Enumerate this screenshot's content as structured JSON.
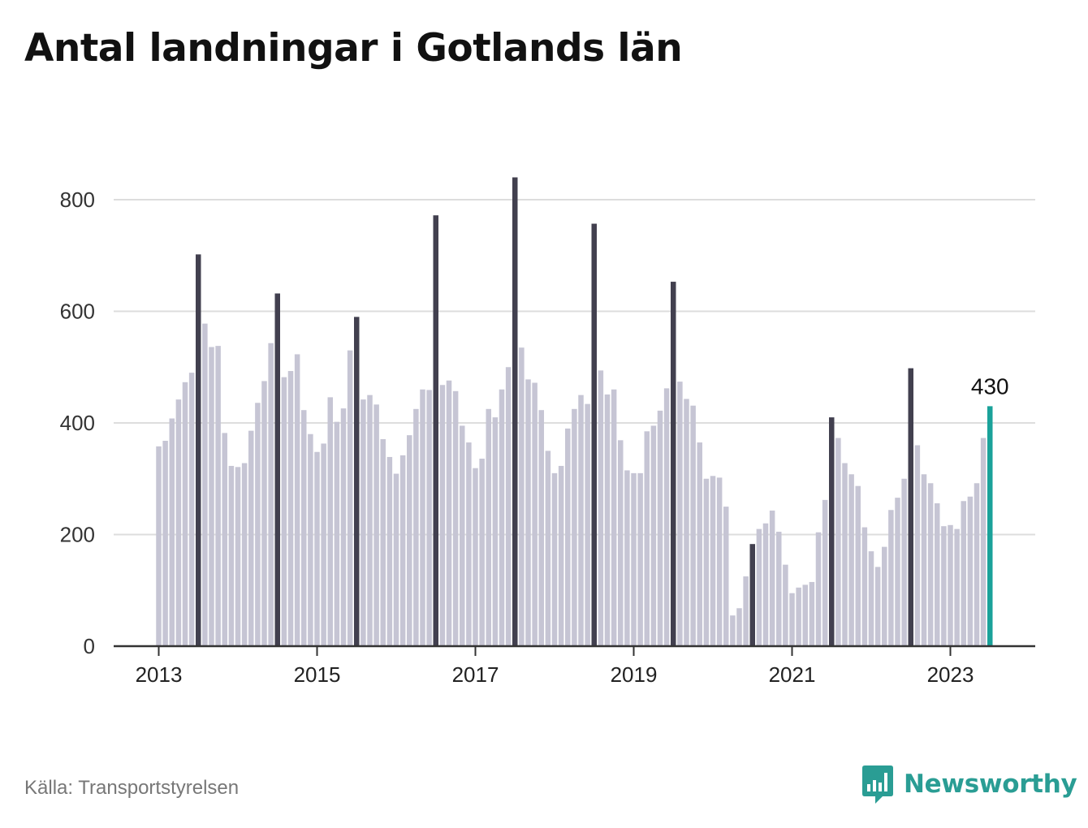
{
  "title": "Antal landningar i Gotlands län",
  "source": "Källa: Transportstyrelsen",
  "brand": {
    "name": "Newsworthy",
    "icon": "newsworthy-logo-icon",
    "color": "#2a9d94"
  },
  "colors": {
    "bar": "#c6c5d4",
    "highlight": "#42404f",
    "latest": "#1aa29a",
    "grid": "#dddddd",
    "axis": "#333333"
  },
  "chart_data": {
    "type": "bar",
    "title": "Antal landningar i Gotlands län",
    "xlabel": "",
    "ylabel": "",
    "ylim": [
      0,
      880
    ],
    "yticks": [
      "0",
      "200",
      "400",
      "600",
      "800"
    ],
    "xticks": [
      "2013",
      "2015",
      "2017",
      "2019",
      "2021",
      "2023"
    ],
    "grid": true,
    "start": "2013-01",
    "x": [
      "2013-01",
      "2013-02",
      "2013-03",
      "2013-04",
      "2013-05",
      "2013-06",
      "2013-07",
      "2013-08",
      "2013-09",
      "2013-10",
      "2013-11",
      "2013-12",
      "2014-01",
      "2014-02",
      "2014-03",
      "2014-04",
      "2014-05",
      "2014-06",
      "2014-07",
      "2014-08",
      "2014-09",
      "2014-10",
      "2014-11",
      "2014-12",
      "2015-01",
      "2015-02",
      "2015-03",
      "2015-04",
      "2015-05",
      "2015-06",
      "2015-07",
      "2015-08",
      "2015-09",
      "2015-10",
      "2015-11",
      "2015-12",
      "2016-01",
      "2016-02",
      "2016-03",
      "2016-04",
      "2016-05",
      "2016-06",
      "2016-07",
      "2016-08",
      "2016-09",
      "2016-10",
      "2016-11",
      "2016-12",
      "2017-01",
      "2017-02",
      "2017-03",
      "2017-04",
      "2017-05",
      "2017-06",
      "2017-07",
      "2017-08",
      "2017-09",
      "2017-10",
      "2017-11",
      "2017-12",
      "2018-01",
      "2018-02",
      "2018-03",
      "2018-04",
      "2018-05",
      "2018-06",
      "2018-07",
      "2018-08",
      "2018-09",
      "2018-10",
      "2018-11",
      "2018-12",
      "2019-01",
      "2019-02",
      "2019-03",
      "2019-04",
      "2019-05",
      "2019-06",
      "2019-07",
      "2019-08",
      "2019-09",
      "2019-10",
      "2019-11",
      "2019-12",
      "2020-01",
      "2020-02",
      "2020-03",
      "2020-04",
      "2020-05",
      "2020-06",
      "2020-07",
      "2020-08",
      "2020-09",
      "2020-10",
      "2020-11",
      "2020-12",
      "2021-01",
      "2021-02",
      "2021-03",
      "2021-04",
      "2021-05",
      "2021-06",
      "2021-07",
      "2021-08",
      "2021-09",
      "2021-10",
      "2021-11",
      "2021-12",
      "2022-01",
      "2022-02",
      "2022-03",
      "2022-04",
      "2022-05",
      "2022-06",
      "2022-07",
      "2022-08",
      "2022-09",
      "2022-10",
      "2022-11",
      "2022-12",
      "2023-01",
      "2023-02",
      "2023-03",
      "2023-04",
      "2023-05",
      "2023-06",
      "2023-07"
    ],
    "values": [
      358,
      368,
      408,
      442,
      473,
      490,
      702,
      578,
      536,
      538,
      382,
      323,
      321,
      328,
      386,
      436,
      475,
      543,
      632,
      482,
      493,
      523,
      423,
      380,
      348,
      363,
      446,
      402,
      426,
      530,
      590,
      442,
      450,
      433,
      371,
      339,
      309,
      342,
      378,
      425,
      460,
      459,
      772,
      468,
      476,
      457,
      395,
      365,
      319,
      336,
      425,
      410,
      460,
      500,
      840,
      535,
      478,
      472,
      423,
      350,
      310,
      323,
      390,
      425,
      450,
      434,
      757,
      494,
      451,
      460,
      369,
      315,
      310,
      310,
      385,
      395,
      422,
      462,
      653,
      474,
      443,
      431,
      365,
      300,
      305,
      302,
      250,
      55,
      68,
      125,
      183,
      210,
      220,
      243,
      205,
      146,
      95,
      105,
      110,
      115,
      204,
      262,
      410,
      373,
      328,
      308,
      287,
      213,
      170,
      142,
      178,
      244,
      266,
      300,
      498,
      360,
      308,
      292,
      256,
      215,
      217,
      210,
      260,
      268,
      292,
      373,
      430
    ],
    "highlight": [
      "2013-07",
      "2014-07",
      "2015-07",
      "2016-07",
      "2017-07",
      "2018-07",
      "2019-07",
      "2020-07",
      "2021-07",
      "2022-07"
    ],
    "latest": {
      "x": "2023-07",
      "value": 430,
      "label": "430"
    }
  }
}
